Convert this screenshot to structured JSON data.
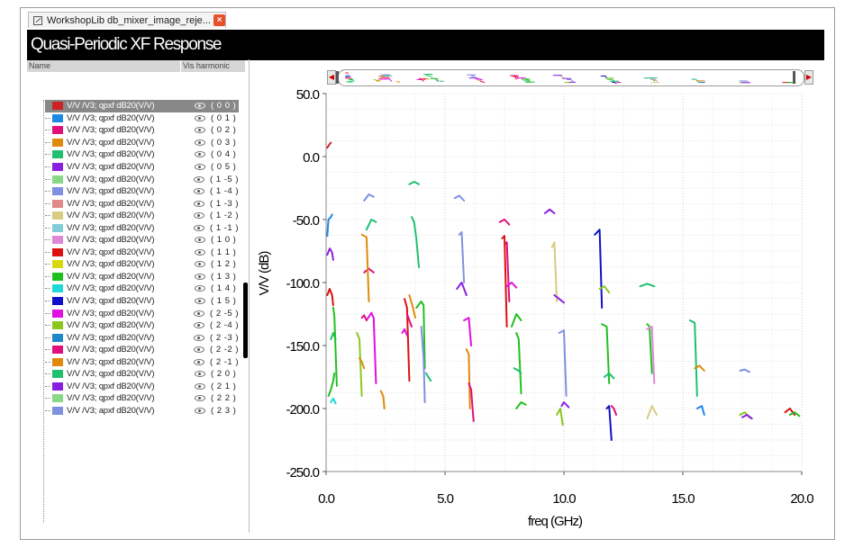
{
  "window": {
    "tab_title": "WorkshopLib db_mixer_image_reje...",
    "close_label": "×",
    "header": "Quasi-Periodic XF Response"
  },
  "legend_panel": {
    "col_name": "Name",
    "col_vis": "Vis harmonic",
    "items": [
      {
        "label": "V/V /V3; qpxf dB20(V/V)",
        "harmonic": "( 0 0 )",
        "color": "#cc2222",
        "selected": true
      },
      {
        "label": "V/V /V3; qpxf dB20(V/V)",
        "harmonic": "( 0 1 )",
        "color": "#1e88e5"
      },
      {
        "label": "V/V /V3; qpxf dB20(V/V)",
        "harmonic": "( 0 2 )",
        "color": "#e0107a"
      },
      {
        "label": "V/V /V3; qpxf dB20(V/V)",
        "harmonic": "( 0 3 )",
        "color": "#e08a0c"
      },
      {
        "label": "V/V /V3; qpxf dB20(V/V)",
        "harmonic": "( 0 4 )",
        "color": "#20c070"
      },
      {
        "label": "V/V /V3; qpxf dB20(V/V)",
        "harmonic": "( 0 5 )",
        "color": "#8a1ee0"
      },
      {
        "label": "V/V /V3; qpxf dB20(V/V)",
        "harmonic": "( 1 -5 )",
        "color": "#88d888"
      },
      {
        "label": "V/V /V3; qpxf dB20(V/V)",
        "harmonic": "( 1 -4 )",
        "color": "#8090e0"
      },
      {
        "label": "V/V /V3; qpxf dB20(V/V)",
        "harmonic": "( 1 -3 )",
        "color": "#e08a8a"
      },
      {
        "label": "V/V /V3; qpxf dB20(V/V)",
        "harmonic": "( 1 -2 )",
        "color": "#d8cc80"
      },
      {
        "label": "V/V /V3; qpxf dB20(V/V)",
        "harmonic": "( 1 -1 )",
        "color": "#80ccd8"
      },
      {
        "label": "V/V /V3; qpxf dB20(V/V)",
        "harmonic": "( 1 0 )",
        "color": "#e088d8"
      },
      {
        "label": "V/V /V3; qpxf dB20(V/V)",
        "harmonic": "( 1 1 )",
        "color": "#dd1111"
      },
      {
        "label": "V/V /V3; qpxf dB20(V/V)",
        "harmonic": "( 1 2 )",
        "color": "#d8d810"
      },
      {
        "label": "V/V /V3; qpxf dB20(V/V)",
        "harmonic": "( 1 3 )",
        "color": "#20c020"
      },
      {
        "label": "V/V /V3; qpxf dB20(V/V)",
        "harmonic": "( 1 4 )",
        "color": "#20d8d8"
      },
      {
        "label": "V/V /V3; qpxf dB20(V/V)",
        "harmonic": "( 1 5 )",
        "color": "#1010c8"
      },
      {
        "label": "V/V /V3; qpxf dB20(V/V)",
        "harmonic": "( 2 -5 )",
        "color": "#e010e0"
      },
      {
        "label": "V/V /V3; qpxf dB20(V/V)",
        "harmonic": "( 2 -4 )",
        "color": "#8ac820"
      },
      {
        "label": "V/V /V3; qpxf dB20(V/V)",
        "harmonic": "( 2 -3 )",
        "color": "#1e88c8"
      },
      {
        "label": "V/V /V3; qpxf dB20(V/V)",
        "harmonic": "( 2 -2 )",
        "color": "#e0107a"
      },
      {
        "label": "V/V /V3; qpxf dB20(V/V)",
        "harmonic": "( 2 -1 )",
        "color": "#e08a0c"
      },
      {
        "label": "V/V /V3; qpxf dB20(V/V)",
        "harmonic": "( 2 0 )",
        "color": "#20c070"
      },
      {
        "label": "V/V /V3; qpxf dB20(V/V)",
        "harmonic": "( 2 1 )",
        "color": "#8a1ee0"
      },
      {
        "label": "V/V /V3; qpxf dB20(V/V)",
        "harmonic": "( 2 2 )",
        "color": "#88d888"
      },
      {
        "label": "V/V /V3; apxf dB20(V/V)",
        "harmonic": "( 2 3 )",
        "color": "#8090e0"
      }
    ]
  },
  "chart_data": {
    "type": "line",
    "xlabel": "freq (GHz)",
    "ylabel": "V/V (dB)",
    "xlim": [
      0.0,
      20.0
    ],
    "ylim": [
      -250.0,
      50.0
    ],
    "x_ticks": [
      0.0,
      5.0,
      10.0,
      15.0,
      20.0
    ],
    "x_tick_labels": [
      "0.0",
      "5.0",
      "10.0",
      "15.0",
      "20.0"
    ],
    "y_ticks": [
      50.0,
      0.0,
      -50.0,
      -100.0,
      -150.0,
      -200.0,
      -250.0
    ],
    "y_tick_labels": [
      "50.0",
      "0.0",
      "-50.0",
      "-100.0",
      "-150.0",
      "-200.0",
      "-250.0"
    ],
    "grid": true,
    "series": [
      {
        "color": "#cc2222",
        "x": [
          0.05,
          0.15,
          0.2
        ],
        "y": [
          7,
          10,
          11
        ]
      },
      {
        "color": "#1e88e5",
        "x": [
          0.05,
          0.1,
          0.2,
          0.25
        ],
        "y": [
          -63,
          -50,
          -48,
          -46
        ]
      },
      {
        "color": "#8a1ee0",
        "x": [
          0.05,
          0.15,
          0.25,
          0.3
        ],
        "y": [
          -78,
          -73,
          -76,
          -82
        ]
      },
      {
        "color": "#dd1111",
        "x": [
          0.05,
          0.15,
          0.25,
          0.3
        ],
        "y": [
          -110,
          -105,
          -110,
          -118
        ]
      },
      {
        "color": "#20c020",
        "x": [
          0.1,
          0.2,
          0.3,
          0.35
        ],
        "y": [
          -190,
          -185,
          -178,
          -172
        ]
      },
      {
        "color": "#20c070",
        "x": [
          0.2,
          0.3,
          0.4
        ],
        "y": [
          -145,
          -140,
          -145
        ]
      },
      {
        "color": "#20c020",
        "x": [
          0.3,
          0.35,
          0.45
        ],
        "y": [
          -120,
          -127,
          -182
        ]
      },
      {
        "color": "#20d8d8",
        "x": [
          0.2,
          0.3,
          0.4
        ],
        "y": [
          -195,
          -192,
          -196
        ]
      },
      {
        "color": "#e0107a",
        "x": [
          1.6,
          1.8,
          2.0
        ],
        "y": [
          -92,
          -89,
          -92
        ]
      },
      {
        "color": "#e08a0c",
        "x": [
          1.5,
          1.7,
          1.8
        ],
        "y": [
          -62,
          -64,
          -115
        ]
      },
      {
        "color": "#20c070",
        "x": [
          1.7,
          1.9,
          2.1
        ],
        "y": [
          -58,
          -50,
          -52
        ]
      },
      {
        "color": "#8090e0",
        "x": [
          1.6,
          1.8,
          2.0
        ],
        "y": [
          -35,
          -30,
          -32
        ]
      },
      {
        "color": "#8ac820",
        "x": [
          1.3,
          1.4,
          1.5
        ],
        "y": [
          -140,
          -145,
          -190
        ]
      },
      {
        "color": "#e08a0c",
        "x": [
          1.4,
          1.5,
          1.6
        ],
        "y": [
          -160,
          -163,
          -168
        ]
      },
      {
        "color": "#e010e0",
        "x": [
          1.7,
          1.9,
          2.0,
          2.1
        ],
        "y": [
          -130,
          -124,
          -128,
          -180
        ]
      },
      {
        "color": "#e0107a",
        "x": [
          1.5,
          1.6,
          1.7
        ],
        "y": [
          -128,
          -126,
          -130
        ]
      },
      {
        "color": "#e08a0c",
        "x": [
          2.3,
          2.4,
          2.45
        ],
        "y": [
          -186,
          -190,
          -200
        ]
      },
      {
        "color": "#20c070",
        "x": [
          3.5,
          3.7,
          3.9
        ],
        "y": [
          -22,
          -20,
          -22
        ]
      },
      {
        "color": "#20c070",
        "x": [
          3.6,
          3.7,
          3.8,
          3.9
        ],
        "y": [
          -48,
          -52,
          -66,
          -88
        ]
      },
      {
        "color": "#e08a0c",
        "x": [
          3.5,
          3.65,
          3.75
        ],
        "y": [
          -110,
          -120,
          -128
        ]
      },
      {
        "color": "#dd1111",
        "x": [
          3.3,
          3.4,
          3.5
        ],
        "y": [
          -113,
          -120,
          -178
        ]
      },
      {
        "color": "#e0107a",
        "x": [
          3.4,
          3.5,
          3.6
        ],
        "y": [
          -125,
          -130,
          -135
        ]
      },
      {
        "color": "#e010e0",
        "x": [
          3.2,
          3.3,
          3.4
        ],
        "y": [
          -140,
          -137,
          -142
        ]
      },
      {
        "color": "#20c020",
        "x": [
          3.8,
          4.0,
          4.1,
          4.15
        ],
        "y": [
          -120,
          -115,
          -118,
          -168
        ]
      },
      {
        "color": "#8090e0",
        "x": [
          4.0,
          4.1,
          4.15
        ],
        "y": [
          -135,
          -160,
          -195
        ]
      },
      {
        "color": "#20c070",
        "x": [
          4.2,
          4.3,
          4.4
        ],
        "y": [
          -172,
          -175,
          -178
        ]
      },
      {
        "color": "#8090e0",
        "x": [
          5.4,
          5.6,
          5.8
        ],
        "y": [
          -33,
          -31,
          -35
        ]
      },
      {
        "color": "#8090e0",
        "x": [
          5.6,
          5.7,
          5.8
        ],
        "y": [
          -62,
          -60,
          -100
        ]
      },
      {
        "color": "#8a1ee0",
        "x": [
          5.5,
          5.7,
          5.9
        ],
        "y": [
          -105,
          -100,
          -110
        ]
      },
      {
        "color": "#e010e0",
        "x": [
          5.8,
          6.0,
          6.1
        ],
        "y": [
          -130,
          -128,
          -150
        ]
      },
      {
        "color": "#e08a0c",
        "x": [
          5.9,
          6.0,
          6.05
        ],
        "y": [
          -153,
          -157,
          -200
        ]
      },
      {
        "color": "#e0107a",
        "x": [
          6.0,
          6.1,
          6.2
        ],
        "y": [
          -180,
          -185,
          -210
        ]
      },
      {
        "color": "#e0107a",
        "x": [
          7.3,
          7.5,
          7.7
        ],
        "y": [
          -52,
          -50,
          -54
        ]
      },
      {
        "color": "#e0107a",
        "x": [
          7.5,
          7.6,
          7.7
        ],
        "y": [
          -70,
          -68,
          -115
        ]
      },
      {
        "color": "#dd1111",
        "x": [
          7.4,
          7.5,
          7.6
        ],
        "y": [
          -65,
          -63,
          -135
        ]
      },
      {
        "color": "#e010e0",
        "x": [
          7.6,
          7.8,
          8.0
        ],
        "y": [
          -103,
          -100,
          -104
        ]
      },
      {
        "color": "#20c020",
        "x": [
          7.8,
          8.0,
          8.2
        ],
        "y": [
          -135,
          -125,
          -130
        ]
      },
      {
        "color": "#20c020",
        "x": [
          8.0,
          8.1,
          8.2
        ],
        "y": [
          -140,
          -145,
          -188
        ]
      },
      {
        "color": "#20c070",
        "x": [
          7.9,
          8.1,
          8.2
        ],
        "y": [
          -168,
          -170,
          -172
        ]
      },
      {
        "color": "#20c020",
        "x": [
          8.0,
          8.2,
          8.4
        ],
        "y": [
          -200,
          -195,
          -197
        ]
      },
      {
        "color": "#8a1ee0",
        "x": [
          9.2,
          9.4,
          9.6
        ],
        "y": [
          -45,
          -42,
          -45
        ]
      },
      {
        "color": "#d8cc80",
        "x": [
          9.5,
          9.6,
          9.7
        ],
        "y": [
          -72,
          -68,
          -115
        ]
      },
      {
        "color": "#8a1ee0",
        "x": [
          9.6,
          9.8,
          10.0
        ],
        "y": [
          -110,
          -113,
          -116
        ]
      },
      {
        "color": "#8090e0",
        "x": [
          9.8,
          10.0,
          10.1
        ],
        "y": [
          -140,
          -138,
          -190
        ]
      },
      {
        "color": "#8a1ee0",
        "x": [
          9.9,
          10.0,
          10.2
        ],
        "y": [
          -198,
          -195,
          -199
        ]
      },
      {
        "color": "#8ac820",
        "x": [
          9.7,
          9.85,
          9.95
        ],
        "y": [
          -205,
          -200,
          -213
        ]
      },
      {
        "color": "#1010c8",
        "x": [
          11.3,
          11.5,
          11.6
        ],
        "y": [
          -62,
          -58,
          -120
        ]
      },
      {
        "color": "#8ac820",
        "x": [
          11.5,
          11.7,
          11.9
        ],
        "y": [
          -105,
          -103,
          -108
        ]
      },
      {
        "color": "#20c020",
        "x": [
          11.6,
          11.8,
          11.9
        ],
        "y": [
          -133,
          -135,
          -180
        ]
      },
      {
        "color": "#1010c8",
        "x": [
          11.8,
          11.9,
          12.0
        ],
        "y": [
          -200,
          -198,
          -225
        ]
      },
      {
        "color": "#20c070",
        "x": [
          11.7,
          11.9,
          12.1
        ],
        "y": [
          -175,
          -172,
          -176
        ]
      },
      {
        "color": "#e0107a",
        "x": [
          12.0,
          12.1,
          12.2
        ],
        "y": [
          -198,
          -200,
          -205
        ]
      },
      {
        "color": "#20c070",
        "x": [
          13.2,
          13.5,
          13.8
        ],
        "y": [
          -103,
          -101,
          -103
        ]
      },
      {
        "color": "#20c020",
        "x": [
          13.5,
          13.6,
          13.7
        ],
        "y": [
          -133,
          -135,
          -172
        ]
      },
      {
        "color": "#e088d8",
        "x": [
          13.5,
          13.7,
          13.8
        ],
        "y": [
          -137,
          -135,
          -180
        ]
      },
      {
        "color": "#d8cc80",
        "x": [
          13.5,
          13.7,
          13.9
        ],
        "y": [
          -208,
          -198,
          -205
        ]
      },
      {
        "color": "#20c070",
        "x": [
          15.3,
          15.5,
          15.6
        ],
        "y": [
          -130,
          -132,
          -190
        ]
      },
      {
        "color": "#e08a0c",
        "x": [
          15.5,
          15.7,
          15.9
        ],
        "y": [
          -168,
          -166,
          -170
        ]
      },
      {
        "color": "#1e88e5",
        "x": [
          15.6,
          15.8,
          15.9
        ],
        "y": [
          -200,
          -198,
          -205
        ]
      },
      {
        "color": "#8090e0",
        "x": [
          17.4,
          17.6,
          17.8
        ],
        "y": [
          -170,
          -169,
          -171
        ]
      },
      {
        "color": "#8ac820",
        "x": [
          17.4,
          17.6,
          17.8
        ],
        "y": [
          -205,
          -203,
          -207
        ]
      },
      {
        "color": "#8a1ee0",
        "x": [
          17.5,
          17.7,
          17.9
        ],
        "y": [
          -207,
          -205,
          -208
        ]
      },
      {
        "color": "#dd1111",
        "x": [
          19.3,
          19.5,
          19.7
        ],
        "y": [
          -203,
          -200,
          -205
        ]
      },
      {
        "color": "#20c020",
        "x": [
          19.5,
          19.7,
          19.9
        ],
        "y": [
          -205,
          -203,
          -206
        ]
      }
    ]
  }
}
